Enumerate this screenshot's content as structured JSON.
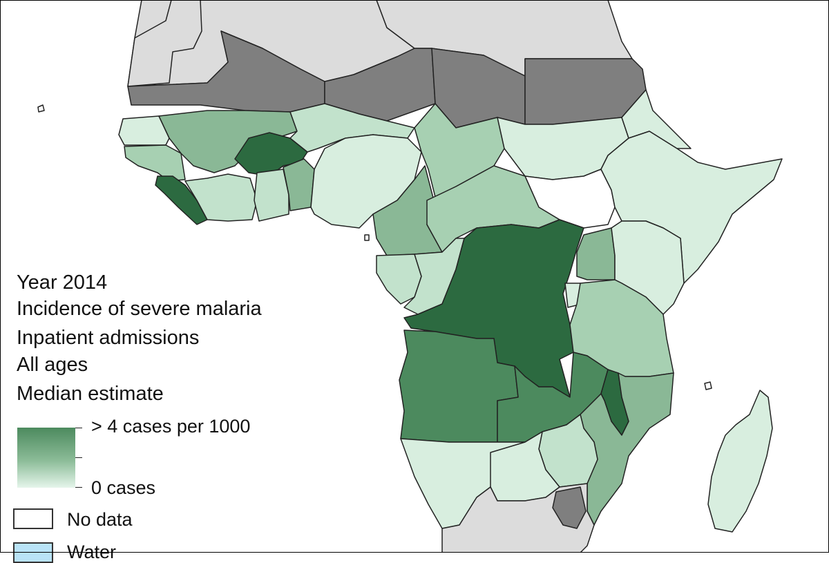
{
  "map": {
    "colors": {
      "no_data_white": "#ffffff",
      "very_low": "#d8eedf",
      "low": "#c2e2cc",
      "medium_low": "#a7d0b2",
      "medium": "#8ab896",
      "high": "#4c8a5e",
      "very_high": "#2c6a40",
      "not_endemic_grey": "#dcdcdc",
      "arid_grey": "#7f7f7f",
      "water": "#b9e3f7"
    }
  },
  "legend": {
    "title_lines": [
      "Year 2014",
      "Incidence of severe malaria",
      "Inpatient admissions",
      "All ages",
      "Median estimate"
    ],
    "gradient": {
      "max_label": "> 4 cases per 1000",
      "min_label": "0 cases",
      "top_color": "#4c8a5e",
      "bottom_color": "#e5f5eb"
    },
    "no_data_label": "No data",
    "water_label": "Water"
  }
}
